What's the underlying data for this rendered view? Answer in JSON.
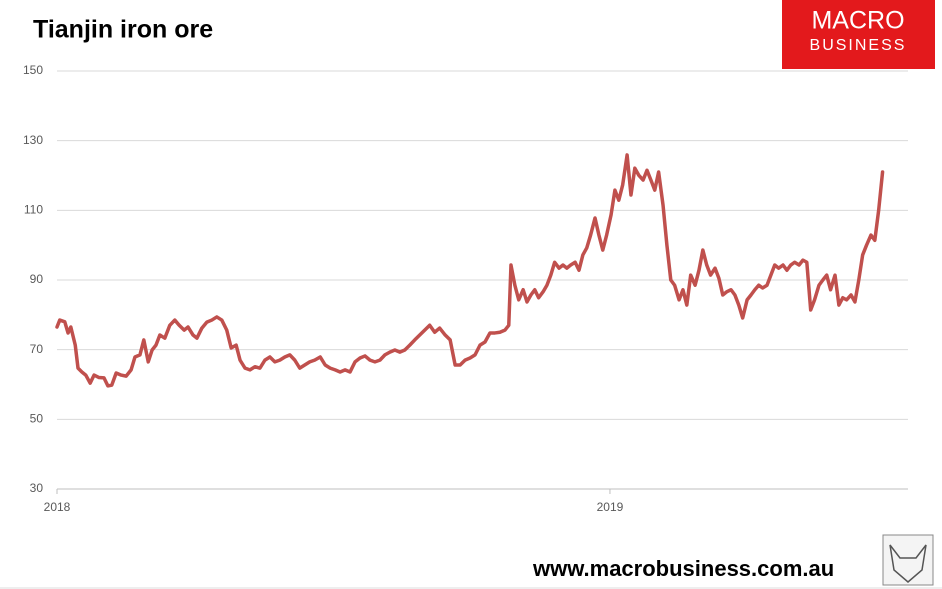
{
  "chart_data": {
    "type": "line",
    "title": "Tianjin iron ore",
    "color": "#c0504d",
    "grid": true,
    "xlim": [
      2018,
      2019.539
    ],
    "xticks": [
      2018,
      2019
    ],
    "ylim": [
      30,
      150
    ],
    "yticks": [
      30,
      50,
      70,
      90,
      110,
      130,
      150
    ],
    "x": [
      2018,
      2018.005,
      2018.014,
      2018.02,
      2018.025,
      2018.033,
      2018.038,
      2018.045,
      2018.052,
      2018.06,
      2018.067,
      2018.076,
      2018.085,
      2018.092,
      2018.099,
      2018.107,
      2018.116,
      2018.125,
      2018.134,
      2018.141,
      2018.15,
      2018.157,
      2018.165,
      2018.172,
      2018.179,
      2018.186,
      2018.195,
      2018.204,
      2018.213,
      2018.221,
      2018.23,
      2018.237,
      2018.246,
      2018.253,
      2018.262,
      2018.271,
      2018.28,
      2018.289,
      2018.298,
      2018.307,
      2018.315,
      2018.324,
      2018.331,
      2018.34,
      2018.349,
      2018.358,
      2018.367,
      2018.376,
      2018.385,
      2018.394,
      2018.403,
      2018.412,
      2018.421,
      2018.43,
      2018.439,
      2018.448,
      2018.457,
      2018.466,
      2018.476,
      2018.485,
      2018.494,
      2018.503,
      2018.512,
      2018.521,
      2018.53,
      2018.539,
      2018.548,
      2018.557,
      2018.566,
      2018.575,
      2018.584,
      2018.593,
      2018.602,
      2018.611,
      2018.62,
      2018.629,
      2018.638,
      2018.647,
      2018.656,
      2018.665,
      2018.674,
      2018.683,
      2018.692,
      2018.702,
      2018.711,
      2018.72,
      2018.729,
      2018.738,
      2018.747,
      2018.756,
      2018.765,
      2018.774,
      2018.783,
      2018.792,
      2018.801,
      2018.81,
      2018.817,
      2018.821,
      2018.828,
      2018.835,
      2018.843,
      2018.85,
      2018.857,
      2018.864,
      2018.871,
      2018.879,
      2018.886,
      2018.893,
      2018.9,
      2018.908,
      2018.915,
      2018.922,
      2018.929,
      2018.937,
      2018.944,
      2018.951,
      2018.958,
      2018.965,
      2018.973,
      2018.98,
      2018.987,
      2018.994,
      2019.002,
      2019.009,
      2019.016,
      2019.023,
      2019.031,
      2019.038,
      2019.045,
      2019.052,
      2019.06,
      2019.067,
      2019.074,
      2019.081,
      2019.088,
      2019.096,
      2019.103,
      2019.11,
      2019.117,
      2019.125,
      2019.132,
      2019.139,
      2019.146,
      2019.154,
      2019.161,
      2019.168,
      2019.175,
      2019.182,
      2019.19,
      2019.197,
      2019.204,
      2019.211,
      2019.219,
      2019.226,
      2019.233,
      2019.24,
      2019.248,
      2019.255,
      2019.262,
      2019.269,
      2019.276,
      2019.284,
      2019.291,
      2019.298,
      2019.305,
      2019.313,
      2019.32,
      2019.327,
      2019.334,
      2019.342,
      2019.349,
      2019.356,
      2019.363,
      2019.37,
      2019.378,
      2019.385,
      2019.392,
      2019.399,
      2019.407,
      2019.414,
      2019.421,
      2019.428,
      2019.436,
      2019.443,
      2019.45,
      2019.457,
      2019.464,
      2019.472,
      2019.479,
      2019.486,
      2019.493
    ],
    "values": [
      76.5,
      78.5,
      78,
      74.8,
      76.5,
      71.3,
      64.7,
      63.6,
      62.7,
      60.4,
      62.7,
      62,
      61.9,
      59.6,
      59.8,
      63.3,
      62.7,
      62.4,
      64.2,
      67.9,
      68.5,
      72.8,
      66.5,
      69.9,
      71.3,
      74.2,
      73.3,
      77,
      78.5,
      77,
      75.6,
      76.5,
      74.2,
      73.3,
      76.2,
      77.9,
      78.5,
      79.4,
      78.5,
      75.6,
      70.5,
      71.3,
      67,
      64.7,
      64.2,
      65.1,
      64.7,
      67,
      67.9,
      66.5,
      67,
      67.9,
      68.5,
      67,
      64.7,
      65.6,
      66.5,
      67,
      67.9,
      65.6,
      64.7,
      64.2,
      63.6,
      64.2,
      63.6,
      66.5,
      67.6,
      68.2,
      67,
      66.5,
      67,
      68.5,
      69.3,
      69.9,
      69.3,
      69.9,
      71.3,
      72.8,
      74.2,
      75.6,
      77,
      75,
      76.2,
      74.2,
      72.8,
      65.6,
      65.6,
      67,
      67.6,
      68.5,
      71.3,
      72.2,
      74.8,
      74.8,
      75,
      75.6,
      77,
      94.3,
      88.5,
      84.3,
      87.2,
      83.7,
      85.7,
      87.2,
      84.9,
      86.6,
      88.5,
      91.4,
      95.1,
      93.4,
      94.3,
      93.4,
      94.3,
      95.1,
      92.8,
      97.2,
      99.2,
      102.9,
      107.8,
      102.9,
      98.6,
      102.9,
      108.7,
      115.8,
      112.9,
      117.3,
      125.9,
      114.4,
      122.1,
      120.1,
      118.7,
      121.5,
      118.7,
      115.8,
      121,
      111.5,
      100,
      90,
      88.5,
      84.3,
      87.2,
      82.8,
      91.4,
      88.5,
      92.8,
      98.6,
      94.3,
      91.4,
      93.4,
      90.5,
      85.7,
      86.6,
      87.2,
      85.7,
      82.8,
      79.1,
      84.3,
      85.7,
      87.2,
      88.5,
      87.7,
      88.5,
      91.4,
      94.3,
      93.4,
      94.3,
      92.8,
      94.3,
      95.1,
      94.3,
      95.7,
      95.1,
      81.4,
      84.3,
      88.5,
      90,
      91.4,
      87.2,
      91.4,
      82.8,
      84.9,
      84.3,
      85.7,
      83.7,
      90,
      97.2,
      100,
      102.9,
      101.4,
      110.1,
      121
    ]
  },
  "logo": {
    "top": "MACRO",
    "bottom": "BUSINESS"
  },
  "footer": "www.macrobusiness.com.au"
}
